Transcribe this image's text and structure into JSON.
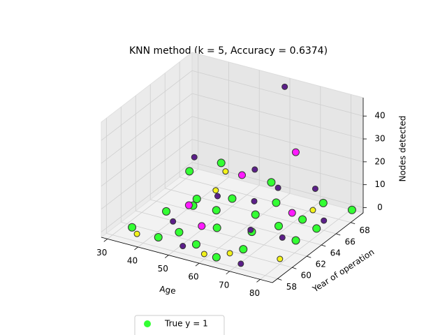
{
  "chart_data": {
    "type": "scatter3d",
    "title": "KNN method (k = 5, Accuracy = 0.6374)",
    "xlabel": "Age",
    "ylabel": "Year of operation",
    "zlabel": "Nodes detected",
    "xlim": [
      28,
      84
    ],
    "ylim": [
      57.3,
      69.7
    ],
    "zlim": [
      -2.3,
      48
    ],
    "xticks": [
      30,
      40,
      50,
      60,
      70,
      80
    ],
    "yticks": [
      58,
      60,
      62,
      64,
      66,
      68
    ],
    "zticks": [
      0,
      10,
      20,
      30,
      40
    ],
    "grid": true,
    "series": [
      {
        "name": "True y = 1",
        "color": "#33ff33",
        "x": [
          34,
          38,
          42,
          45,
          47,
          50,
          52,
          55,
          57,
          60,
          62,
          64,
          66,
          68,
          70,
          73,
          75,
          78,
          80,
          82,
          36,
          44,
          58,
          48
        ],
        "y": [
          59,
          62,
          64,
          58,
          60,
          66,
          63,
          59,
          61,
          65,
          67,
          58,
          62,
          60,
          64,
          66,
          68,
          63,
          65,
          69,
          66,
          67,
          68,
          62
        ],
        "z": [
          0,
          1,
          0,
          2,
          0,
          1,
          4,
          0,
          3,
          0,
          1,
          0,
          2,
          0,
          1,
          0,
          3,
          0,
          1,
          0,
          8,
          12,
          6,
          10
        ]
      },
      {
        "color": "#5c1f8a",
        "x": [
          40,
          55,
          62,
          70,
          80,
          45,
          53,
          68,
          76,
          60,
          50,
          72,
          65
        ],
        "y": [
          65,
          67,
          64,
          69,
          66,
          60,
          58,
          61,
          62,
          69,
          64,
          58,
          66
        ],
        "z": [
          18,
          13,
          9,
          5,
          2,
          4,
          1,
          6,
          3,
          46,
          7,
          0,
          11
        ]
      },
      {
        "color": "#f2f21a",
        "x": [
          38,
          55,
          66,
          80,
          47,
          74,
          60
        ],
        "y": [
          58,
          63,
          59,
          60,
          65,
          67,
          58
        ],
        "z": [
          1,
          22,
          0,
          0,
          6,
          2,
          0
        ]
      },
      {
        "color": "#ff1aff",
        "x": [
          43,
          58,
          66,
          52,
          72
        ],
        "y": [
          63,
          64,
          68,
          61,
          65
        ],
        "z": [
          3,
          19,
          22,
          2,
          5
        ]
      }
    ]
  }
}
